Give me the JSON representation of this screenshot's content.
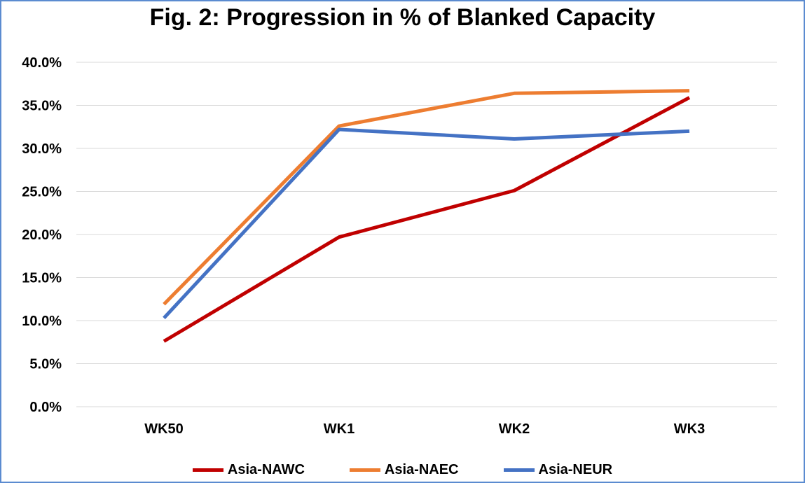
{
  "chart_data": {
    "type": "line",
    "title": "Fig. 2: Progression in % of Blanked Capacity",
    "categories": [
      "WK50",
      "WK1",
      "WK2",
      "WK3"
    ],
    "ylim": [
      0,
      40
    ],
    "yticks": [
      "0.0%",
      "5.0%",
      "10.0%",
      "15.0%",
      "20.0%",
      "25.0%",
      "30.0%",
      "35.0%",
      "40.0%"
    ],
    "grid": true,
    "legend_position": "bottom",
    "series": [
      {
        "name": "Asia-NAWC",
        "color": "#c00000",
        "values": [
          7.6,
          19.7,
          25.1,
          35.9
        ]
      },
      {
        "name": "Asia-NAEC",
        "color": "#ed7d31",
        "values": [
          11.9,
          32.6,
          36.4,
          36.7
        ]
      },
      {
        "name": "Asia-NEUR",
        "color": "#4472c4",
        "values": [
          10.3,
          32.2,
          31.1,
          32.0
        ]
      }
    ]
  }
}
